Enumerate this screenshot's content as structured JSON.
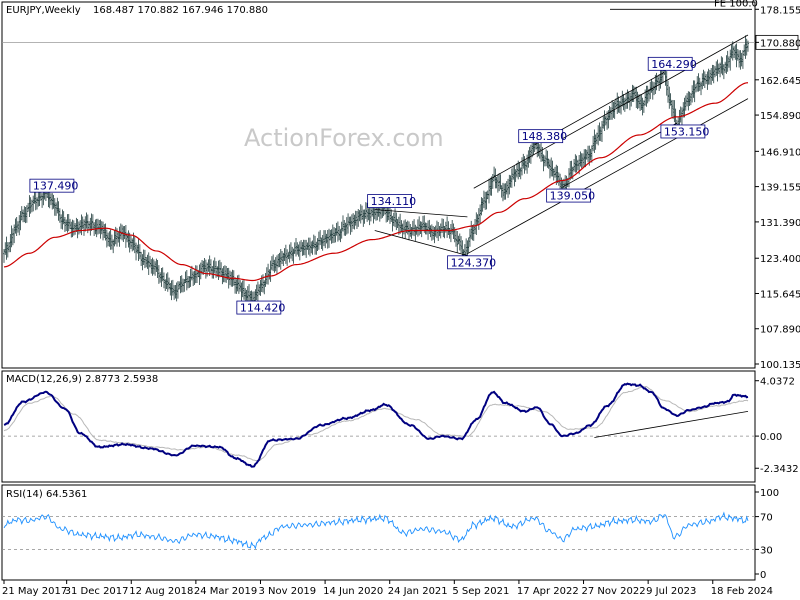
{
  "header": {
    "symbol": "EURJPY,Weekly",
    "ohlc": "168.487 170.882 167.946 170.880"
  },
  "watermark": "ActionForex.com",
  "chart_data": [
    {
      "type": "line",
      "pane": "price",
      "ylim": [
        100.135,
        178.0
      ],
      "y_ticks": [
        "178.155",
        "170.880",
        "162.645",
        "154.890",
        "146.910",
        "139.155",
        "131.390",
        "123.400",
        "115.645",
        "107.890",
        "100.135"
      ],
      "current_price": "170.880",
      "x_ticks": [
        "21 May 2017",
        "31 Dec 2017",
        "12 Aug 2018",
        "24 Mar 2019",
        "3 Nov 2019",
        "14 Jun 2020",
        "24 Jan 2021",
        "5 Sep 2021",
        "17 Apr 2022",
        "27 Nov 2022",
        "9 Jul 2023",
        "18 Feb 2024"
      ],
      "price_anchors": [
        [
          0,
          124.5
        ],
        [
          3,
          126.0
        ],
        [
          9,
          130.0
        ],
        [
          15,
          133.0
        ],
        [
          24,
          136.0
        ],
        [
          33,
          137.49
        ],
        [
          40,
          135.0
        ],
        [
          46,
          131.5
        ],
        [
          55,
          130.0
        ],
        [
          65,
          131.0
        ],
        [
          76,
          130.0
        ],
        [
          84,
          127.0
        ],
        [
          93,
          129.0
        ],
        [
          101,
          126.5
        ],
        [
          110,
          123.0
        ],
        [
          118,
          121.5
        ],
        [
          126,
          118.5
        ],
        [
          134,
          116.0
        ],
        [
          141,
          118.0
        ],
        [
          150,
          119.5
        ],
        [
          158,
          121.5
        ],
        [
          167,
          121.0
        ],
        [
          176,
          119.5
        ],
        [
          184,
          117.5
        ],
        [
          190,
          115.5
        ],
        [
          196,
          114.42
        ],
        [
          203,
          117.5
        ],
        [
          212,
          122.0
        ],
        [
          222,
          124.0
        ],
        [
          232,
          125.5
        ],
        [
          242,
          126.0
        ],
        [
          252,
          127.5
        ],
        [
          262,
          129.0
        ],
        [
          272,
          131.0
        ],
        [
          282,
          133.0
        ],
        [
          292,
          133.5
        ],
        [
          299,
          134.11
        ],
        [
          306,
          132.0
        ],
        [
          314,
          130.0
        ],
        [
          322,
          129.5
        ],
        [
          330,
          130.5
        ],
        [
          338,
          129.0
        ],
        [
          346,
          130.0
        ],
        [
          352,
          129.5
        ],
        [
          358,
          127.0
        ],
        [
          362,
          124.37
        ],
        [
          370,
          130.0
        ],
        [
          378,
          136.0
        ],
        [
          386,
          141.0
        ],
        [
          394,
          138.0
        ],
        [
          402,
          142.0
        ],
        [
          410,
          144.0
        ],
        [
          418,
          148.38
        ],
        [
          426,
          145.0
        ],
        [
          434,
          142.0
        ],
        [
          440,
          139.05
        ],
        [
          450,
          144.0
        ],
        [
          460,
          146.0
        ],
        [
          468,
          150.5
        ],
        [
          474,
          154.0
        ],
        [
          482,
          157.0
        ],
        [
          490,
          158.0
        ],
        [
          496,
          159.5
        ],
        [
          502,
          157.0
        ],
        [
          508,
          160.0
        ],
        [
          514,
          162.0
        ],
        [
          520,
          164.29
        ],
        [
          524,
          158.0
        ],
        [
          530,
          153.15
        ],
        [
          538,
          158.0
        ],
        [
          546,
          161.5
        ],
        [
          554,
          163.0
        ],
        [
          562,
          165.0
        ],
        [
          568,
          165.5
        ],
        [
          574,
          169.0
        ],
        [
          580,
          167.0
        ],
        [
          586,
          170.88
        ]
      ],
      "sma_anchors": [
        [
          0,
          121.5
        ],
        [
          20,
          124.5
        ],
        [
          40,
          128.0
        ],
        [
          60,
          129.5
        ],
        [
          80,
          130.0
        ],
        [
          100,
          128.5
        ],
        [
          120,
          125.0
        ],
        [
          140,
          122.0
        ],
        [
          160,
          120.0
        ],
        [
          180,
          119.0
        ],
        [
          196,
          118.5
        ],
        [
          210,
          119.5
        ],
        [
          230,
          122.0
        ],
        [
          260,
          124.5
        ],
        [
          290,
          127.5
        ],
        [
          320,
          129.5
        ],
        [
          350,
          129.5
        ],
        [
          370,
          130.5
        ],
        [
          390,
          133.5
        ],
        [
          410,
          136.5
        ],
        [
          440,
          140.5
        ],
        [
          470,
          145.5
        ],
        [
          500,
          150.5
        ],
        [
          530,
          154.5
        ],
        [
          560,
          157.5
        ],
        [
          586,
          162.0
        ]
      ],
      "fe_level": 178.155,
      "fe_label": "FE 100.0",
      "channel_lines": [
        {
          "name": "channel-upper",
          "from": [
            370,
            138.8
          ],
          "to": [
            586,
            172.5
          ]
        },
        {
          "name": "channel-lower",
          "from": [
            365,
            124.4
          ],
          "to": [
            586,
            158.5
          ]
        },
        {
          "name": "triangle-upper",
          "from": [
            292,
            134.11
          ],
          "to": [
            365,
            132.5
          ]
        },
        {
          "name": "triangle-lower",
          "from": [
            292,
            129.5
          ],
          "to": [
            365,
            124.0
          ]
        },
        {
          "name": "inner-support",
          "from": [
            440,
            139.05
          ],
          "to": [
            530,
            153.15
          ]
        },
        {
          "name": "inner-resistance",
          "from": [
            418,
            148.38
          ],
          "to": [
            520,
            164.29
          ]
        }
      ],
      "annotations": [
        {
          "label": "137.490",
          "i": 33,
          "v": 137.49
        },
        {
          "label": "114.420",
          "i": 196,
          "v": 114.42
        },
        {
          "label": "134.110",
          "i": 299,
          "v": 134.11
        },
        {
          "label": "124.370",
          "i": 362,
          "v": 124.37
        },
        {
          "label": "148.380",
          "i": 418,
          "v": 148.38
        },
        {
          "label": "139.050",
          "i": 440,
          "v": 139.05
        },
        {
          "label": "164.290",
          "i": 520,
          "v": 164.29
        },
        {
          "label": "153.150",
          "i": 530,
          "v": 153.15
        }
      ]
    },
    {
      "type": "line",
      "pane": "macd",
      "title": "MACD(12,26,9) 2.8773 2.5938",
      "ylim": [
        -3.2,
        4.6
      ],
      "y_ticks": [
        4.0372,
        0.0,
        -2.3432
      ],
      "y_tick_labels": [
        "4.0372",
        "0.00",
        "-2.3432"
      ],
      "macd_anchors": [
        [
          0,
          0.8
        ],
        [
          15,
          2.5
        ],
        [
          33,
          3.2
        ],
        [
          48,
          2.0
        ],
        [
          60,
          0.2
        ],
        [
          75,
          -0.8
        ],
        [
          95,
          -0.6
        ],
        [
          115,
          -0.9
        ],
        [
          135,
          -1.4
        ],
        [
          150,
          -0.7
        ],
        [
          170,
          -0.8
        ],
        [
          182,
          -1.6
        ],
        [
          196,
          -2.2
        ],
        [
          210,
          -0.3
        ],
        [
          230,
          -0.2
        ],
        [
          250,
          0.8
        ],
        [
          270,
          1.3
        ],
        [
          290,
          1.9
        ],
        [
          300,
          2.3
        ],
        [
          320,
          0.8
        ],
        [
          335,
          -0.2
        ],
        [
          345,
          0.0
        ],
        [
          360,
          -0.2
        ],
        [
          372,
          1.2
        ],
        [
          385,
          3.2
        ],
        [
          395,
          2.4
        ],
        [
          410,
          1.8
        ],
        [
          420,
          2.1
        ],
        [
          430,
          0.9
        ],
        [
          440,
          0.0
        ],
        [
          450,
          0.2
        ],
        [
          462,
          0.8
        ],
        [
          475,
          2.2
        ],
        [
          490,
          3.8
        ],
        [
          500,
          3.7
        ],
        [
          510,
          3.2
        ],
        [
          520,
          2.0
        ],
        [
          530,
          1.5
        ],
        [
          540,
          1.9
        ],
        [
          550,
          2.1
        ],
        [
          560,
          2.4
        ],
        [
          570,
          2.5
        ],
        [
          575,
          3.0
        ],
        [
          586,
          2.8773
        ]
      ],
      "signal_anchors": [
        [
          0,
          0.4
        ],
        [
          20,
          2.4
        ],
        [
          38,
          2.9
        ],
        [
          55,
          1.6
        ],
        [
          75,
          -0.3
        ],
        [
          95,
          -0.5
        ],
        [
          120,
          -0.8
        ],
        [
          140,
          -1.0
        ],
        [
          160,
          -0.8
        ],
        [
          185,
          -1.4
        ],
        [
          200,
          -1.8
        ],
        [
          215,
          -0.6
        ],
        [
          240,
          0.1
        ],
        [
          270,
          1.1
        ],
        [
          300,
          2.0
        ],
        [
          325,
          1.2
        ],
        [
          345,
          0.1
        ],
        [
          365,
          0.0
        ],
        [
          385,
          2.3
        ],
        [
          405,
          2.2
        ],
        [
          425,
          1.8
        ],
        [
          445,
          0.5
        ],
        [
          465,
          0.6
        ],
        [
          490,
          3.2
        ],
        [
          505,
          3.6
        ],
        [
          520,
          2.6
        ],
        [
          540,
          1.8
        ],
        [
          560,
          2.2
        ],
        [
          586,
          2.5938
        ]
      ],
      "trendline": {
        "from": [
          465,
          -0.1
        ],
        "to": [
          586,
          1.8
        ]
      }
    },
    {
      "type": "line",
      "pane": "rsi",
      "title": "RSI(14) 64.5361",
      "ylim": [
        0,
        100
      ],
      "y_ticks": [
        100,
        70,
        30,
        0
      ],
      "y_tick_labels": [
        "100",
        "70",
        "30",
        "0"
      ],
      "levels": [
        70,
        30
      ],
      "rsi_anchors": [
        [
          0,
          60
        ],
        [
          10,
          66
        ],
        [
          20,
          65
        ],
        [
          33,
          70
        ],
        [
          45,
          55
        ],
        [
          60,
          48
        ],
        [
          75,
          46
        ],
        [
          90,
          44
        ],
        [
          105,
          48
        ],
        [
          120,
          45
        ],
        [
          135,
          40
        ],
        [
          150,
          48
        ],
        [
          165,
          46
        ],
        [
          180,
          41
        ],
        [
          196,
          34
        ],
        [
          205,
          45
        ],
        [
          220,
          58
        ],
        [
          240,
          60
        ],
        [
          260,
          63
        ],
        [
          280,
          66
        ],
        [
          300,
          68
        ],
        [
          315,
          50
        ],
        [
          330,
          55
        ],
        [
          345,
          52
        ],
        [
          360,
          42
        ],
        [
          370,
          60
        ],
        [
          385,
          68
        ],
        [
          400,
          58
        ],
        [
          418,
          68
        ],
        [
          430,
          52
        ],
        [
          440,
          42
        ],
        [
          450,
          55
        ],
        [
          465,
          58
        ],
        [
          480,
          64
        ],
        [
          495,
          66
        ],
        [
          510,
          64
        ],
        [
          520,
          72
        ],
        [
          528,
          45
        ],
        [
          540,
          60
        ],
        [
          555,
          64
        ],
        [
          565,
          70
        ],
        [
          575,
          68
        ],
        [
          586,
          64.5361
        ]
      ]
    }
  ]
}
